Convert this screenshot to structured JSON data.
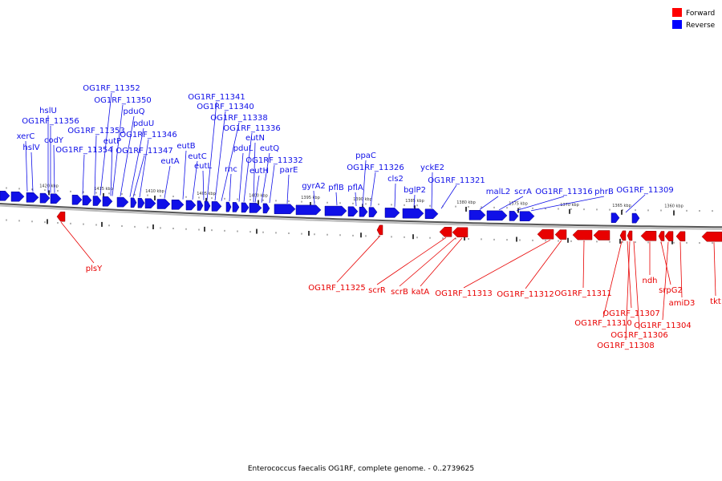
{
  "caption": "Enterococcus faecalis OG1RF, complete genome. - 0..2739625",
  "legend": [
    {
      "label": "Forward",
      "color": "#ff0000"
    },
    {
      "label": "Reverse",
      "color": "#0000ff"
    }
  ],
  "colors": {
    "reverse": "#1010e8",
    "forward": "#e80000",
    "axis": "#888888"
  },
  "ticks": [
    "1420 kbp",
    "1415 kbp",
    "1410 kbp",
    "1405 kbp",
    "1400 kbp",
    "1395 kbp",
    "1390 kbp",
    "1385 kbp",
    "1380 kbp",
    "1375 kbp",
    "1370 kbp",
    "1365 kbp",
    "1360 kbp"
  ],
  "reverse_labels": [
    "xerC",
    "hslV",
    "hslU",
    "OG1RF_11356",
    "codY",
    "OG1RF_11354",
    "OG1RF_11353",
    "OG1RF_11352",
    "eutP",
    "OG1RF_11350",
    "pduQ",
    "pduU",
    "OG1RF_11347",
    "OG1RF_11346",
    "eutA",
    "eutB",
    "eutC",
    "eutL",
    "OG1RF_11341",
    "OG1RF_11340",
    "OG1RF_11338",
    "rnc",
    "pduL",
    "OG1RF_11336",
    "eutN",
    "eutH",
    "eutQ",
    "OG1RF_11332",
    "parE",
    "gyrA2",
    "pflB",
    "pflA",
    "ppaC",
    "OG1RF_11326",
    "cls2",
    "bglP2",
    "yckE2",
    "OG1RF_11321",
    "malL2",
    "scrA",
    "OG1RF_11316",
    "phrB",
    "OG1RF_11309"
  ],
  "forward_labels": [
    "plsY",
    "OG1RF_11325",
    "scrR",
    "scrB",
    "katA",
    "OG1RF_11313",
    "OG1RF_11312",
    "OG1RF_11311",
    "OG1RF_11307",
    "OG1RF_11310",
    "OG1RF_11306",
    "OG1RF_11308",
    "ndh",
    "srpG2",
    "OG1RF_11304",
    "amiD3",
    "tkt"
  ]
}
